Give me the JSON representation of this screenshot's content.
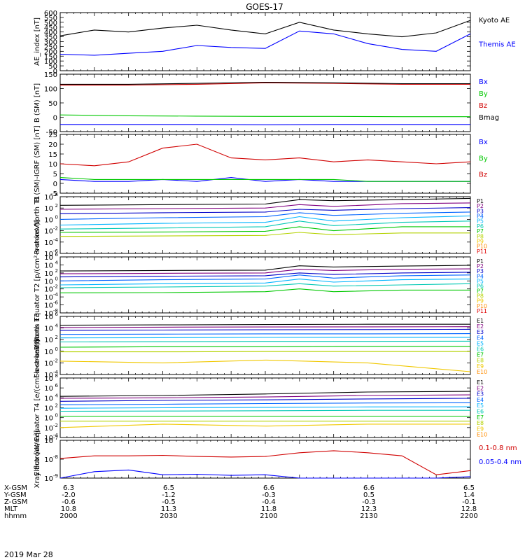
{
  "title": "GOES-17",
  "date_label": "2019 Mar 28",
  "colors": {
    "black": "#000000",
    "blue": "#0000ff",
    "green": "#00c800",
    "red": "#d00000",
    "darkred": "#8b0000",
    "P": [
      "#000000",
      "#800080",
      "#0000c8",
      "#0064ff",
      "#00b4ff",
      "#00c8b4",
      "#00c800",
      "#b4d200",
      "#f0c800",
      "#ff8c00",
      "#e00000"
    ],
    "E": [
      "#000000",
      "#800080",
      "#0000c8",
      "#0064ff",
      "#00b4ff",
      "#00c8b4",
      "#00c800",
      "#b4d200",
      "#f0c800",
      "#ff8c00"
    ]
  },
  "chart_data": [
    {
      "type": "line",
      "ylabel": "AE_index [nT]",
      "ylim": [
        0,
        600
      ],
      "yticks": [
        0,
        50,
        100,
        150,
        200,
        250,
        300,
        350,
        400,
        450,
        500,
        550,
        600
      ],
      "x": [
        0,
        5,
        10,
        15,
        20,
        25,
        30,
        35,
        40,
        45,
        50,
        55,
        60
      ],
      "series": [
        {
          "name": "Kyoto AE",
          "color": "#000000",
          "values": [
            360,
            420,
            400,
            440,
            470,
            420,
            380,
            500,
            420,
            380,
            350,
            390,
            520
          ]
        },
        {
          "name": "Themis AE",
          "color": "#0000ff",
          "values": [
            170,
            160,
            180,
            200,
            260,
            240,
            230,
            410,
            380,
            280,
            220,
            200,
            380
          ]
        }
      ]
    },
    {
      "type": "line",
      "ylabel": "B (SM) [nT]",
      "ylim": [
        -50,
        150
      ],
      "yticks": [
        -50,
        0,
        50,
        100,
        150
      ],
      "x": [
        0,
        10,
        20,
        30,
        40,
        50,
        60
      ],
      "series": [
        {
          "name": "Bx",
          "color": "#0000ff",
          "values": [
            -25,
            -25,
            -25,
            -26,
            -25,
            -25,
            -25
          ]
        },
        {
          "name": "By",
          "color": "#00c800",
          "values": [
            8,
            5,
            4,
            3,
            3,
            2,
            2
          ]
        },
        {
          "name": "Bz",
          "color": "#d00000",
          "values": [
            112,
            112,
            115,
            120,
            118,
            115,
            115
          ]
        },
        {
          "name": "Bmag",
          "color": "#000000",
          "values": [
            115,
            115,
            118,
            122,
            120,
            117,
            117
          ]
        }
      ]
    },
    {
      "type": "line",
      "ylabel": "B (SM)-IGRF (SM) [nT]",
      "ylim": [
        -5,
        25
      ],
      "yticks": [
        -5,
        0,
        5,
        10,
        15,
        20,
        25
      ],
      "x": [
        0,
        5,
        10,
        15,
        20,
        25,
        30,
        35,
        40,
        45,
        50,
        55,
        60
      ],
      "series": [
        {
          "name": "Bx",
          "color": "#0000ff",
          "values": [
            2,
            1,
            1,
            2,
            1,
            3,
            1,
            2,
            1,
            1,
            1,
            1,
            1
          ]
        },
        {
          "name": "By",
          "color": "#00c800",
          "values": [
            3,
            2,
            2,
            2,
            2,
            2,
            2,
            2,
            2,
            1,
            1,
            1,
            1
          ]
        },
        {
          "name": "Bz",
          "color": "#d00000",
          "values": [
            10,
            9,
            11,
            18,
            20,
            13,
            12,
            13,
            11,
            12,
            11,
            10,
            11
          ]
        }
      ]
    },
    {
      "type": "line",
      "ylabel": "Protons North T1",
      "ylog": true,
      "ylim": [
        1e-06,
        10000.0
      ],
      "yticks": [
        "10^4",
        "10^2",
        "10^0",
        "10^-2",
        "10^-4",
        "10^-6"
      ],
      "legend": [
        "P1",
        "P2",
        "P3",
        "P4",
        "P5",
        "P6",
        "P7",
        "P8",
        "P9",
        "P10",
        "P11"
      ],
      "x": [
        0,
        15,
        30,
        35,
        40,
        50,
        60
      ],
      "series": [
        {
          "name": "P1",
          "values": [
            300,
            400,
            500,
            3000,
            2000,
            3000,
            5000
          ]
        },
        {
          "name": "P2",
          "values": [
            60,
            80,
            100,
            400,
            200,
            600,
            800
          ]
        },
        {
          "name": "P3",
          "values": [
            10,
            15,
            20,
            60,
            40,
            80,
            120
          ]
        },
        {
          "name": "P4",
          "values": [
            1,
            2,
            3,
            15,
            5,
            12,
            20
          ]
        },
        {
          "name": "P5",
          "values": [
            0.1,
            0.2,
            0.3,
            3,
            0.5,
            2,
            4
          ]
        },
        {
          "name": "P6",
          "values": [
            0.02,
            0.03,
            0.05,
            0.5,
            0.08,
            0.3,
            0.5
          ]
        },
        {
          "name": "P7",
          "values": [
            0.005,
            0.006,
            0.008,
            0.05,
            0.01,
            0.05,
            0.05
          ]
        },
        {
          "name": "P8",
          "values": [
            0.001,
            0.0012,
            0.0015,
            0.005,
            0.002,
            0.004,
            0.004
          ]
        }
      ]
    },
    {
      "type": "line",
      "ylabel": "Protons Equator T2 [p/(cm²-s-sr-keV)]",
      "ylog": true,
      "ylim": [
        1e-08,
        1000000.0
      ],
      "yticks": [
        "10^6",
        "10^4",
        "10^2",
        "10^0",
        "10^-2",
        "10^-4",
        "10^-6",
        "10^-8"
      ],
      "legend": [
        "P1",
        "P2",
        "P3",
        "P4",
        "P5",
        "P6",
        "P7",
        "P8",
        "P9",
        "P10",
        "P11"
      ],
      "x": [
        0,
        15,
        30,
        35,
        40,
        50,
        60
      ],
      "series": [
        {
          "name": "P1",
          "values": [
            300,
            400,
            500,
            6000,
            3000,
            5000,
            8000
          ]
        },
        {
          "name": "P2",
          "values": [
            60,
            80,
            100,
            800,
            400,
            800,
            1000
          ]
        },
        {
          "name": "P3",
          "values": [
            10,
            15,
            20,
            100,
            40,
            100,
            150
          ]
        },
        {
          "name": "P4",
          "values": [
            1,
            2,
            3,
            30,
            5,
            20,
            30
          ]
        },
        {
          "name": "P5",
          "values": [
            0.1,
            0.2,
            0.3,
            3,
            0.5,
            2,
            3
          ]
        },
        {
          "name": "P6",
          "values": [
            0.02,
            0.03,
            0.05,
            0.2,
            0.05,
            0.1,
            0.2
          ]
        },
        {
          "name": "P7",
          "values": [
            0.001,
            0.0012,
            0.002,
            0.01,
            0.002,
            0.005,
            0.005
          ]
        }
      ]
    },
    {
      "type": "line",
      "ylabel": "Electrons North T3",
      "ylog": true,
      "ylim": [
        0.0001,
        1000000.0
      ],
      "yticks": [
        "10^6",
        "10^4",
        "10^2",
        "10^0",
        "10^-2",
        "10^-4"
      ],
      "legend": [
        "E1",
        "E2",
        "E3",
        "E4",
        "E5",
        "E6",
        "E7",
        "E8",
        "E9",
        "E10"
      ],
      "x": [
        0,
        15,
        30,
        45,
        60
      ],
      "series": [
        {
          "name": "E1",
          "values": [
            30000,
            35000,
            40000,
            45000,
            45000
          ]
        },
        {
          "name": "E2",
          "values": [
            12000,
            14000,
            15000,
            16000,
            17000
          ]
        },
        {
          "name": "E3",
          "values": [
            4000,
            4500,
            5000,
            5500,
            6000
          ]
        },
        {
          "name": "E4",
          "values": [
            800,
            900,
            1000,
            1000,
            1100
          ]
        },
        {
          "name": "E5",
          "values": [
            200,
            220,
            240,
            250,
            250
          ]
        },
        {
          "name": "E6",
          "values": [
            40,
            45,
            50,
            50,
            55
          ]
        },
        {
          "name": "E7",
          "values": [
            5,
            6,
            6,
            7,
            7
          ]
        },
        {
          "name": "E8",
          "values": [
            0.8,
            0.8,
            0.9,
            0.9,
            0.9
          ]
        },
        {
          "name": "E9",
          "values": [
            0.02,
            0.01,
            0.03,
            0.01,
            0.0003
          ]
        }
      ]
    },
    {
      "type": "line",
      "ylabel": "Electrons Equator T4 [e/(cm²-s-sr-keV)]",
      "ylog": true,
      "ylim": [
        0.0001,
        100000000.0
      ],
      "yticks": [
        "10^8",
        "10^6",
        "10^4",
        "10^2",
        "10^0",
        "10^-2",
        "10^-4"
      ],
      "legend": [
        "E1",
        "E2",
        "E3",
        "E4",
        "E5",
        "E6",
        "E7",
        "E8",
        "E9",
        "E10"
      ],
      "x": [
        0,
        15,
        30,
        45,
        60
      ],
      "series": [
        {
          "name": "E1",
          "values": [
            20000,
            30000,
            60000,
            150000,
            200000
          ]
        },
        {
          "name": "E2",
          "values": [
            8000,
            10000,
            15000,
            30000,
            40000
          ]
        },
        {
          "name": "E3",
          "values": [
            2000,
            3000,
            4000,
            6000,
            8000
          ]
        },
        {
          "name": "E4",
          "values": [
            400,
            500,
            700,
            900,
            1000
          ]
        },
        {
          "name": "E5",
          "values": [
            80,
            100,
            120,
            150,
            160
          ]
        },
        {
          "name": "E6",
          "values": [
            20,
            22,
            25,
            30,
            30
          ]
        },
        {
          "name": "E7",
          "values": [
            2,
            2,
            2,
            2,
            2
          ]
        },
        {
          "name": "E8",
          "values": [
            0.2,
            0.2,
            0.2,
            0.2,
            0.2
          ]
        },
        {
          "name": "E9",
          "values": [
            0.01,
            0.05,
            0.02,
            0.05,
            0.05
          ]
        }
      ]
    },
    {
      "type": "line",
      "ylabel": "Xray flux [W/m²]",
      "ylog": true,
      "ylim": [
        1e-09,
        1e-07
      ],
      "yticks": [
        "10^-7",
        "10^-8",
        "10^-9"
      ],
      "x": [
        0,
        5,
        10,
        15,
        20,
        25,
        30,
        35,
        40,
        45,
        50,
        55,
        60
      ],
      "series": [
        {
          "name": "0.1-0.8 nm",
          "color": "#d00000",
          "values": [
            1.1e-08,
            1.5e-08,
            1.5e-08,
            1.6e-08,
            1.4e-08,
            1.3e-08,
            1.4e-08,
            2.2e-08,
            2.8e-08,
            2.2e-08,
            1.5e-08,
            1.5e-09,
            2.5e-09
          ]
        },
        {
          "name": "0.05-0.4 nm",
          "color": "#0000ff",
          "values": [
            1e-09,
            2.2e-09,
            2.7e-09,
            1.5e-09,
            1.6e-09,
            1.4e-09,
            1.5e-09,
            1e-09,
            1e-09,
            1e-09,
            1e-09,
            1e-09,
            1.2e-09
          ]
        }
      ]
    }
  ],
  "footer": {
    "row_labels": [
      "X-GSM",
      "Y-GSM",
      "Z-GSM",
      "MLT",
      "hhmm"
    ],
    "columns": [
      [
        "6.3",
        "-2.0",
        "-0.6",
        "10.8",
        "2000"
      ],
      [
        "6.5",
        "-1.2",
        "-0.5",
        "11.3",
        "2030"
      ],
      [
        "6.6",
        "-0.3",
        "-0.4",
        "11.8",
        "2100"
      ],
      [
        "6.6",
        "0.5",
        "-0.3",
        "12.3",
        "2130"
      ],
      [
        "6.5",
        "1.4",
        "-0.1",
        "12.8",
        "2200"
      ]
    ]
  }
}
